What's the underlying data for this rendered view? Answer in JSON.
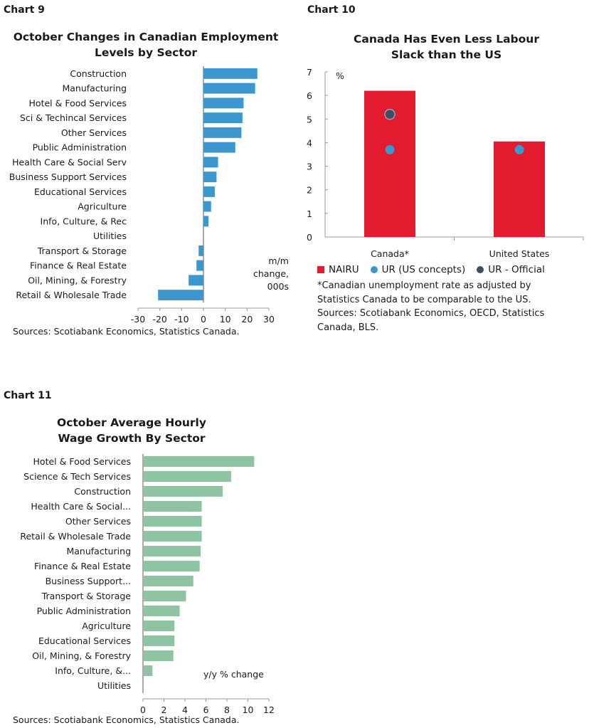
{
  "charts": {
    "c9": {
      "label": "Chart 9",
      "title_line1": "October Changes in Canadian Employment",
      "title_line2": "Levels by Sector",
      "unit_line1": "m/m",
      "unit_line2": "change,",
      "unit_line3": "000s",
      "source": "Sources: Scotiabank Economics, Statistics Canada."
    },
    "c10": {
      "label": "Chart 10",
      "title_line1": "Canada Has Even Less Labour",
      "title_line2": "Slack than the US",
      "y_unit": "%",
      "legend_nairu": "NAIRU",
      "legend_ur_us": "UR (US concepts)",
      "legend_ur_official": "UR - Official",
      "footnote_l1": "*Canadian unemployment rate as adjusted by",
      "footnote_l2": "Statistics Canada to be comparable to the US.",
      "footnote_l3": "Sources: Scotiabank Economics, OECD, Statistics",
      "footnote_l4": "Canada, BLS."
    },
    "c11": {
      "label": "Chart 11",
      "title_line1": "October Average Hourly",
      "title_line2": "Wage Growth By Sector",
      "unit": "y/y % change",
      "source": "Sources: Scotiabank Economics, Statistics Canada."
    }
  },
  "colors": {
    "c9_bar": "#3d97cf",
    "c10_nairu": "#e31b2f",
    "c10_ur_us": "#3d97cf",
    "c10_ur_official": "#3f4d5e",
    "c11_bar": "#8fc4a2"
  },
  "chart_data": [
    {
      "type": "bar",
      "orientation": "horizontal",
      "title": "October Changes in Canadian Employment Levels by Sector",
      "categories": [
        "Construction",
        "Manufacturing",
        "Hotel & Food Services",
        "Sci & Techincal Services",
        "Other Services",
        "Public Administration",
        "Health Care & Social Serv",
        "Business Support Services",
        "Educational Services",
        "Agriculture",
        "Info, Culture, & Rec",
        "Utilities",
        "Transport & Storage",
        "Finance & Real Estate",
        "Oil, Mining, & Forestry",
        "Retail & Wholesale Trade"
      ],
      "values": [
        24.7,
        23.7,
        18.4,
        17.9,
        17.4,
        14.6,
        6.7,
        6.0,
        5.2,
        3.5,
        2.3,
        0,
        -2.2,
        -3.2,
        -6.8,
        -20.8
      ],
      "xlim": [
        -30,
        30
      ],
      "xticks": [
        -30,
        -20,
        -10,
        0,
        10,
        20,
        30
      ],
      "grid": false
    },
    {
      "type": "bar",
      "title": "Canada Has Even Less Labour Slack than the US",
      "categories": [
        "Canada*",
        "United States"
      ],
      "series": [
        {
          "name": "NAIRU",
          "marker": "bar",
          "values": [
            6.2,
            4.05
          ]
        },
        {
          "name": "UR (US concepts)",
          "marker": "dot",
          "values": [
            3.7,
            3.7
          ]
        },
        {
          "name": "UR - Official",
          "marker": "dot",
          "values": [
            5.2,
            null
          ]
        }
      ],
      "ylabel": "%",
      "ylim": [
        0,
        7
      ],
      "yticks": [
        0,
        1,
        2,
        3,
        4,
        5,
        6,
        7
      ],
      "legend": "bottom",
      "grid": false
    },
    {
      "type": "bar",
      "orientation": "horizontal",
      "title": "October Average Hourly Wage Growth By Sector",
      "categories": [
        "Hotel & Food Services",
        "Science & Tech Services",
        "Construction",
        "Health Care & Social...",
        "Other Services",
        "Retail & Wholesale Trade",
        "Manufacturing",
        "Finance & Real Estate",
        "Business Support...",
        "Transport & Storage",
        "Public Administration",
        "Agriculture",
        "Educational Services",
        "Oil, Mining, & Forestry",
        "Info, Culture, &...",
        "Utilities"
      ],
      "values": [
        10.6,
        8.4,
        7.6,
        5.6,
        5.6,
        5.6,
        5.5,
        5.4,
        4.8,
        4.1,
        3.5,
        3.0,
        3.0,
        2.9,
        0.9,
        0
      ],
      "xlim": [
        0,
        12
      ],
      "xticks": [
        0,
        2,
        4,
        6,
        8,
        10,
        12
      ],
      "grid": false
    }
  ]
}
